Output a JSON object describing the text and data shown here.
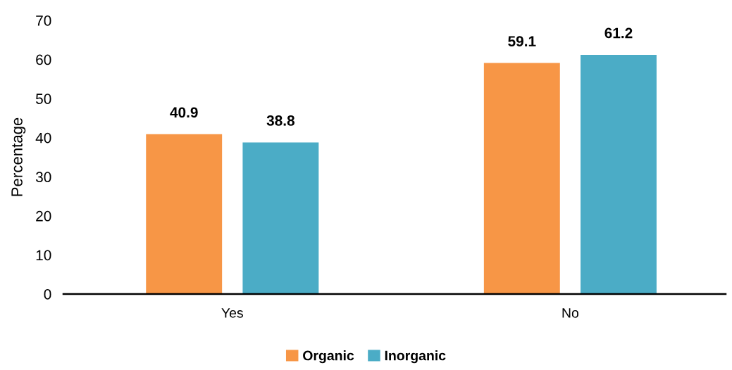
{
  "chart_data": {
    "type": "bar",
    "ylabel": "Percentage",
    "categories": [
      "Yes",
      "No"
    ],
    "series": [
      {
        "name": "Organic",
        "color": "#f79646",
        "values": [
          40.9,
          59.1
        ]
      },
      {
        "name": "Inorganic",
        "color": "#4bacc6",
        "values": [
          38.8,
          61.2
        ]
      }
    ],
    "ylim": [
      0,
      70
    ],
    "yticks": [
      0,
      10,
      20,
      30,
      40,
      50,
      60,
      70
    ],
    "grid": false,
    "legend": "bottom",
    "data_labels": true
  }
}
